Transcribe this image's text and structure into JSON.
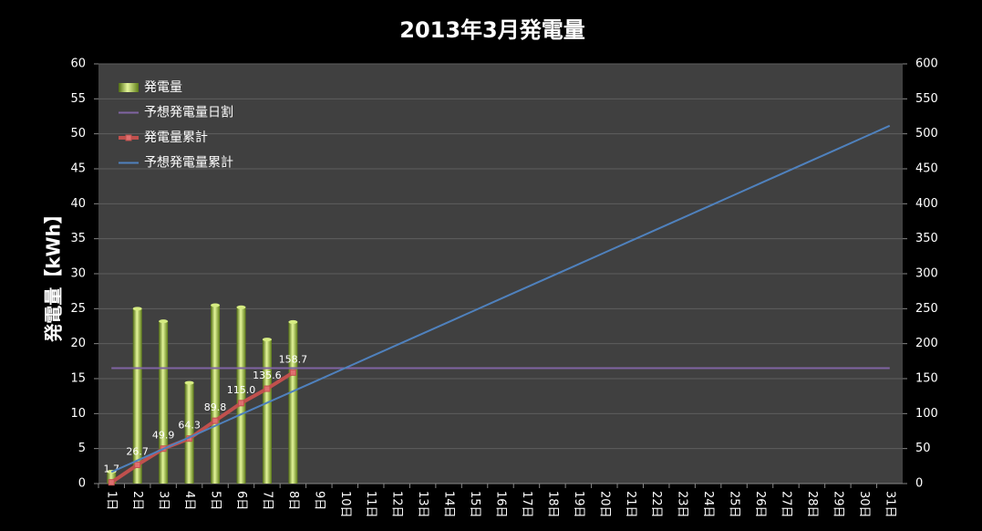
{
  "chart_data": {
    "type": "bar-line",
    "title": "2013年3月発電量",
    "ylabel": "発電量【kWh】",
    "categories": [
      "1日",
      "2日",
      "3日",
      "4日",
      "5日",
      "6日",
      "7日",
      "8日",
      "9日",
      "10日",
      "11日",
      "12日",
      "13日",
      "14日",
      "15日",
      "16日",
      "17日",
      "18日",
      "19日",
      "20日",
      "21日",
      "22日",
      "23日",
      "24日",
      "25日",
      "26日",
      "27日",
      "28日",
      "29日",
      "30日",
      "31日"
    ],
    "series": [
      {
        "name": "発電量",
        "type": "bar",
        "color": "#9bbb3a",
        "values": [
          1.7,
          25.0,
          23.2,
          14.4,
          25.5,
          25.2,
          20.6,
          23.1,
          null,
          null,
          null,
          null,
          null,
          null,
          null,
          null,
          null,
          null,
          null,
          null,
          null,
          null,
          null,
          null,
          null,
          null,
          null,
          null,
          null,
          null,
          null
        ]
      },
      {
        "name": "予想発電量日割",
        "type": "line",
        "color": "#8064a2",
        "values": [
          16.5,
          16.5,
          16.5,
          16.5,
          16.5,
          16.5,
          16.5,
          16.5,
          16.5,
          16.5,
          16.5,
          16.5,
          16.5,
          16.5,
          16.5,
          16.5,
          16.5,
          16.5,
          16.5,
          16.5,
          16.5,
          16.5,
          16.5,
          16.5,
          16.5,
          16.5,
          16.5,
          16.5,
          16.5,
          16.5,
          16.5
        ]
      },
      {
        "name": "発電量累計",
        "type": "line",
        "axis": "y2",
        "color": "#c0504d",
        "markers": true,
        "values": [
          1.7,
          26.7,
          49.9,
          64.3,
          89.8,
          115.0,
          135.6,
          158.7,
          null,
          null,
          null,
          null,
          null,
          null,
          null,
          null,
          null,
          null,
          null,
          null,
          null,
          null,
          null,
          null,
          null,
          null,
          null,
          null,
          null,
          null,
          null
        ],
        "value_labels": [
          "1.7",
          "26.7",
          "49.9",
          "64.3",
          "89.8",
          "115.0",
          "135.6",
          "158.7",
          null,
          null,
          null,
          null,
          null,
          null,
          null,
          null,
          null,
          null,
          null,
          null,
          null,
          null,
          null,
          null,
          null,
          null,
          null,
          null,
          null,
          null,
          null
        ]
      },
      {
        "name": "予想発電量累計",
        "type": "line",
        "axis": "y2",
        "color": "#4f81bd",
        "values": [
          16.5,
          33,
          49.5,
          66,
          82.5,
          99,
          115.5,
          132,
          148.5,
          165,
          181.5,
          198,
          214.5,
          231,
          247.5,
          264,
          280.5,
          297,
          313.5,
          330,
          346.5,
          363,
          379.5,
          396,
          412.5,
          429,
          445.5,
          462,
          478.5,
          495,
          511.5
        ]
      }
    ],
    "ylim": [
      0,
      60
    ],
    "yticks": [
      0,
      5,
      10,
      15,
      20,
      25,
      30,
      35,
      40,
      45,
      50,
      55,
      60
    ],
    "y2lim": [
      0,
      600
    ],
    "y2ticks": [
      0,
      50,
      100,
      150,
      200,
      250,
      300,
      350,
      400,
      450,
      500,
      550,
      600
    ],
    "grid": true,
    "legend": "top-left"
  }
}
